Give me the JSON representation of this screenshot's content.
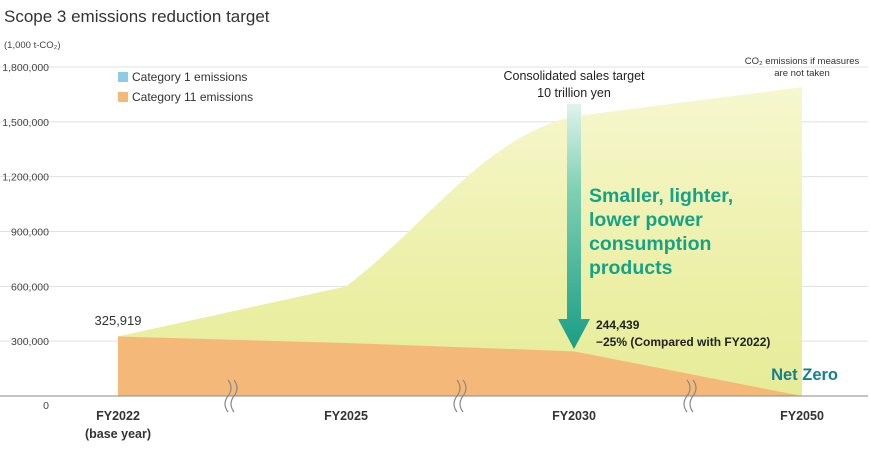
{
  "chart_data": {
    "type": "area",
    "title": "Scope 3 emissions reduction target",
    "unit_label": "(1,000 t-CO₂)",
    "y_ticks": [
      0,
      300000,
      600000,
      900000,
      1200000,
      1500000,
      1800000
    ],
    "y_tick_labels": [
      "0",
      "300,000",
      "600,000",
      "900,000",
      "1,200,000",
      "1,500,000",
      "1,800,000"
    ],
    "ylim": [
      0,
      1800000
    ],
    "grid": true,
    "legend_position": "top-left",
    "categories": [
      "FY2022",
      "FY2025",
      "FY2030",
      "FY2050"
    ],
    "x_labels": [
      {
        "line1": "FY2022",
        "line2": "(base year)"
      },
      {
        "line1": "FY2025",
        "line2": ""
      },
      {
        "line1": "FY2030",
        "line2": ""
      },
      {
        "line1": "FY2050",
        "line2": ""
      }
    ],
    "series": [
      {
        "name": "Category 1 emissions",
        "color": "#8ecbe6",
        "values": [
          0,
          0,
          0,
          0
        ]
      },
      {
        "name": "Category 11 emissions",
        "color": "#f4b978",
        "values": [
          325919,
          290000,
          244439,
          0
        ]
      }
    ],
    "bau_curve": {
      "label": "CO₂ emissions if measures are not taken",
      "values": [
        325919,
        600000,
        1530000,
        1690000
      ]
    },
    "annotations": {
      "base_value": "325,919",
      "sales_target": "Consolidated sales target\n10 trillion yen",
      "measure": "Smaller, lighter,\nlower power\nconsumption\nproducts",
      "fy2030_value": "244,439",
      "fy2030_reduction": "−25% (Compared with FY2022)",
      "net_zero": "Net Zero"
    },
    "colors": {
      "area_fill": "#f4b978",
      "bau_fill_top": "#f6f7c0",
      "arrow": "#1a9d86",
      "measure_text": "#15a388",
      "net_zero_text": "#157f8e",
      "axis_text": "#333333",
      "grid": "#e0e0e0"
    }
  }
}
